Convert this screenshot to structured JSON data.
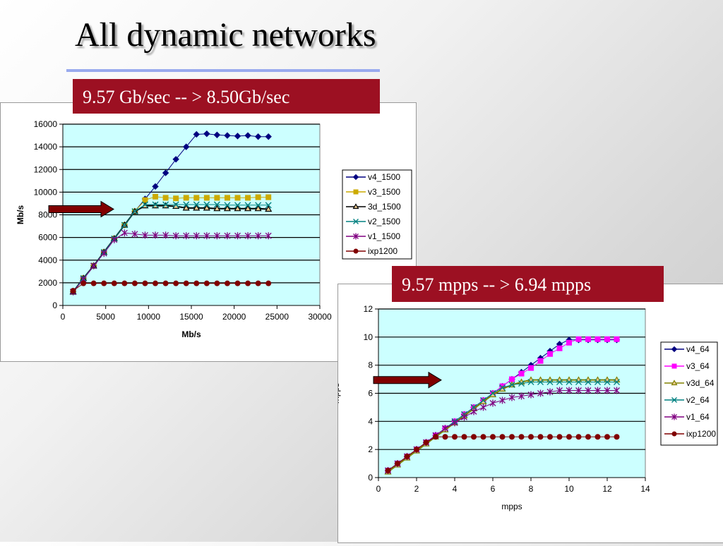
{
  "title": "All dynamic networks",
  "callouts": {
    "first": "9.57 Gb/sec -- > 8.50Gb/sec",
    "second": "9.57 mpps -- > 6.94 mpps"
  },
  "colors": {
    "callout_bg": "#9c1022",
    "plot_bg": "#ccffff",
    "arrow": "#800000"
  },
  "chart_data": [
    {
      "type": "line",
      "xlabel": "Mb/s",
      "ylabel": "Mb/s",
      "xlim": [
        0,
        30000
      ],
      "ylim": [
        0,
        16000
      ],
      "xticks": [
        0,
        5000,
        10000,
        15000,
        20000,
        25000,
        30000
      ],
      "yticks": [
        0,
        2000,
        4000,
        6000,
        8000,
        10000,
        12000,
        14000,
        16000
      ],
      "grid": "horizontal",
      "legend_position": "right",
      "x": [
        1200,
        2400,
        3600,
        4800,
        6000,
        7200,
        8400,
        9600,
        10800,
        12000,
        13200,
        14400,
        15600,
        16800,
        18000,
        19200,
        20400,
        21600,
        22800,
        24000
      ],
      "series": [
        {
          "name": "v4_1500",
          "color": "#000080",
          "marker": "diamond",
          "values": [
            1200,
            2400,
            3500,
            4700,
            5900,
            7100,
            8300,
            9400,
            10500,
            11700,
            12900,
            14000,
            15100,
            15150,
            15050,
            15000,
            14950,
            15000,
            14900,
            14900
          ]
        },
        {
          "name": "v3_1500",
          "color": "#ccaa00",
          "marker": "square",
          "values": [
            1200,
            2400,
            3500,
            4700,
            5900,
            7100,
            8300,
            9300,
            9600,
            9500,
            9450,
            9500,
            9500,
            9500,
            9500,
            9500,
            9500,
            9500,
            9550,
            9550
          ]
        },
        {
          "name": "3d_1500",
          "color": "#000000",
          "marker": "triangle",
          "values": [
            1200,
            2400,
            3500,
            4700,
            5900,
            7100,
            8300,
            8800,
            8800,
            8800,
            8750,
            8600,
            8600,
            8600,
            8550,
            8550,
            8550,
            8550,
            8550,
            8500
          ]
        },
        {
          "name": "v2_1500",
          "color": "#008080",
          "marker": "x",
          "values": [
            1200,
            2400,
            3500,
            4700,
            5900,
            7100,
            8300,
            8900,
            8900,
            8900,
            8900,
            8900,
            8900,
            8900,
            8900,
            8850,
            8850,
            8850,
            8850,
            8850
          ]
        },
        {
          "name": "v1_1500",
          "color": "#800080",
          "marker": "star",
          "values": [
            1200,
            2300,
            3500,
            4600,
            5800,
            6400,
            6300,
            6200,
            6200,
            6200,
            6150,
            6150,
            6150,
            6150,
            6150,
            6150,
            6150,
            6150,
            6150,
            6150
          ]
        },
        {
          "name": "ixp1200",
          "color": "#800000",
          "marker": "circle",
          "values": [
            1300,
            1950,
            1950,
            1950,
            1950,
            1950,
            1950,
            1950,
            1950,
            1950,
            1950,
            1950,
            1950,
            1950,
            1950,
            1950,
            1950,
            1950,
            1950,
            1950
          ]
        }
      ],
      "annotation_arrow_at_y": 8500
    },
    {
      "type": "line",
      "xlabel": "mpps",
      "ylabel": "mpps",
      "xlim": [
        0,
        14
      ],
      "ylim": [
        0,
        12
      ],
      "xticks": [
        0,
        2,
        4,
        6,
        8,
        10,
        12,
        14
      ],
      "yticks": [
        0,
        2,
        4,
        6,
        8,
        10,
        12
      ],
      "grid": "horizontal",
      "legend_position": "right",
      "x": [
        0.5,
        1.0,
        1.5,
        2.0,
        2.5,
        3.0,
        3.5,
        4.0,
        4.5,
        5.0,
        5.5,
        6.0,
        6.5,
        7.0,
        7.5,
        8.0,
        8.5,
        9.0,
        9.5,
        10.0,
        10.5,
        11.0,
        11.5,
        12.0,
        12.5
      ],
      "series": [
        {
          "name": "v4_64",
          "color": "#000080",
          "marker": "diamond",
          "values": [
            0.5,
            1.0,
            1.5,
            2.0,
            2.5,
            3.0,
            3.5,
            4.0,
            4.5,
            5.0,
            5.5,
            6.0,
            6.5,
            7.0,
            7.5,
            8.0,
            8.5,
            9.0,
            9.5,
            9.8,
            9.8,
            9.8,
            9.8,
            9.8,
            9.8
          ]
        },
        {
          "name": "v3_64",
          "color": "#ff00ff",
          "marker": "square",
          "values": [
            0.5,
            1.0,
            1.5,
            2.0,
            2.5,
            3.0,
            3.5,
            4.0,
            4.5,
            5.0,
            5.5,
            6.0,
            6.5,
            7.0,
            7.4,
            7.8,
            8.3,
            8.8,
            9.2,
            9.6,
            9.85,
            9.85,
            9.85,
            9.85,
            9.85
          ]
        },
        {
          "name": "v3d_64",
          "color": "#808000",
          "marker": "triangle",
          "values": [
            0.4,
            0.9,
            1.4,
            1.9,
            2.4,
            2.9,
            3.4,
            3.9,
            4.4,
            4.9,
            5.4,
            5.9,
            6.3,
            6.6,
            6.8,
            6.95,
            6.95,
            6.95,
            6.95,
            6.95,
            6.95,
            6.95,
            6.95,
            6.95,
            6.95
          ]
        },
        {
          "name": "v2_64",
          "color": "#008080",
          "marker": "x",
          "values": [
            0.5,
            1.0,
            1.5,
            2.0,
            2.5,
            3.0,
            3.5,
            4.0,
            4.5,
            5.0,
            5.5,
            6.0,
            6.4,
            6.6,
            6.7,
            6.8,
            6.8,
            6.8,
            6.8,
            6.8,
            6.8,
            6.8,
            6.8,
            6.8,
            6.8
          ]
        },
        {
          "name": "v1_64",
          "color": "#800080",
          "marker": "star",
          "values": [
            0.5,
            1.0,
            1.5,
            2.0,
            2.5,
            3.0,
            3.5,
            3.9,
            4.3,
            4.7,
            5.0,
            5.3,
            5.5,
            5.7,
            5.8,
            5.9,
            6.0,
            6.1,
            6.2,
            6.2,
            6.2,
            6.2,
            6.2,
            6.2,
            6.2
          ]
        },
        {
          "name": "ixp1200",
          "color": "#800000",
          "marker": "circle",
          "values": [
            0.5,
            1.0,
            1.5,
            2.0,
            2.5,
            2.9,
            2.9,
            2.9,
            2.9,
            2.9,
            2.9,
            2.9,
            2.9,
            2.9,
            2.9,
            2.9,
            2.9,
            2.9,
            2.9,
            2.9,
            2.9,
            2.9,
            2.9,
            2.9,
            2.9
          ]
        }
      ],
      "annotation_arrow_at_y": 6.94
    }
  ]
}
